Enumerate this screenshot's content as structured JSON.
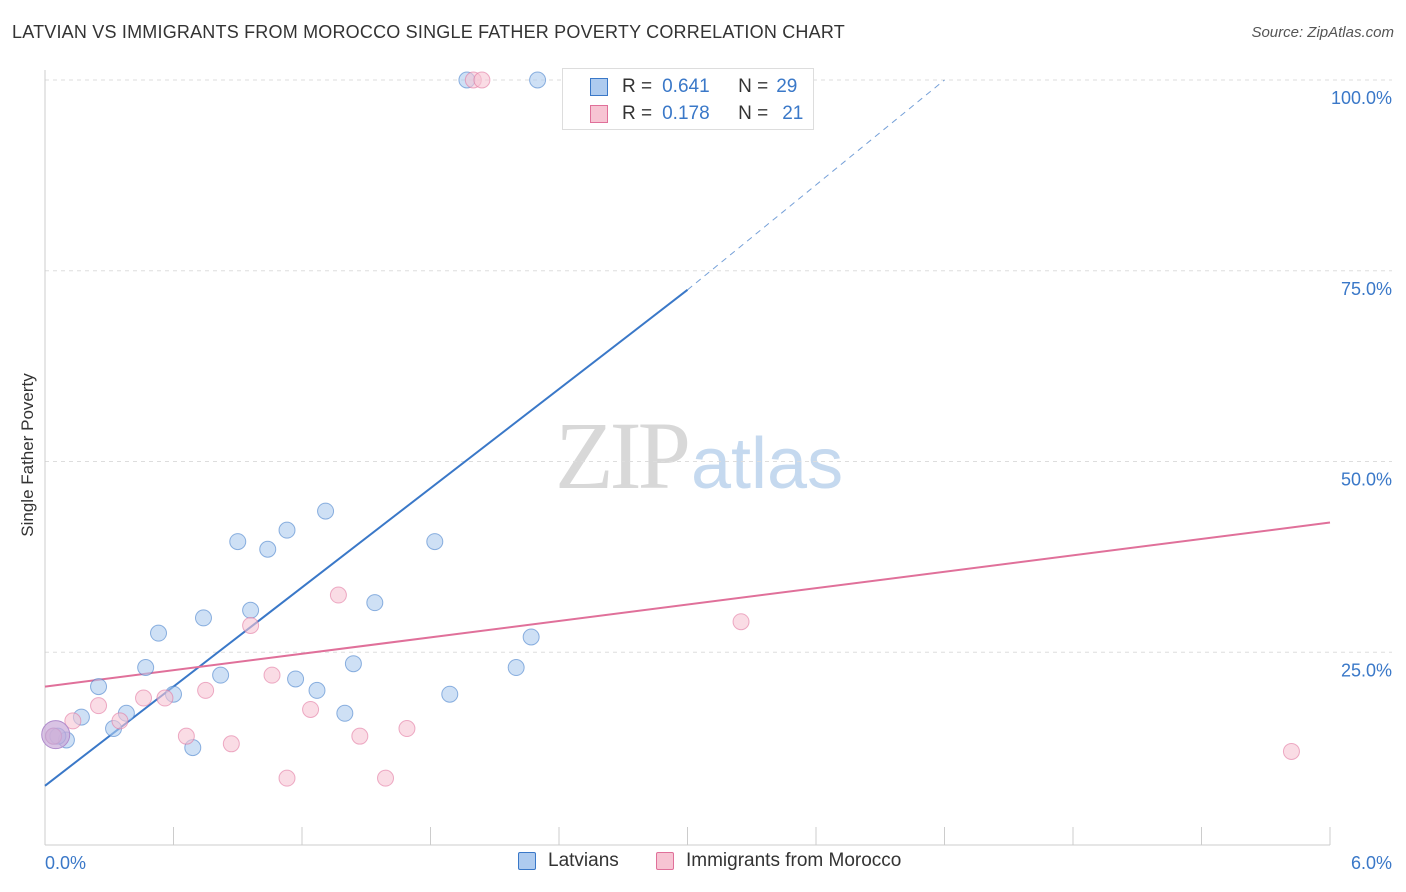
{
  "title": "LATVIAN VS IMMIGRANTS FROM MOROCCO SINGLE FATHER POVERTY CORRELATION CHART",
  "source": "Source: ZipAtlas.com",
  "watermark": {
    "zip": "ZIP",
    "atlas": "atlas"
  },
  "colors": {
    "latvians_fill": "#aecbef",
    "latvians_stroke": "#3a78c8",
    "morocco_fill": "#f7c4d3",
    "morocco_stroke": "#e0709a",
    "grid": "#dddddd",
    "tick_text": "#3a78c8"
  },
  "stats_legend": [
    {
      "r_label": "R =",
      "r_value": "0.641",
      "n_label": "N =",
      "n_value": "29"
    },
    {
      "r_label": "R =",
      "r_value": "0.178",
      "n_label": "N =",
      "n_value": "21"
    }
  ],
  "chart_data": {
    "type": "scatter",
    "title": "LATVIAN VS IMMIGRANTS FROM MOROCCO SINGLE FATHER POVERTY CORRELATION CHART",
    "xlabel": "",
    "ylabel": "Single Father Poverty",
    "xlim": [
      0,
      6
    ],
    "ylim": [
      0,
      102
    ],
    "x_tick_labels": [
      "0.0%",
      "6.0%"
    ],
    "y_ticks": [
      25,
      50,
      75,
      100
    ],
    "y_tick_labels": [
      "25.0%",
      "50.0%",
      "75.0%",
      "100.0%"
    ],
    "grid": "horizontal dashed",
    "legend": "bottom-center",
    "series": [
      {
        "name": "Latvians",
        "trend": {
          "x1": 0,
          "y1": 7.5,
          "x2": 3.0,
          "y2": 72.5,
          "dashed_to_x": 4.2,
          "dashed_to_y": 100
        },
        "points": [
          [
            0.04,
            14.0
          ],
          [
            0.1,
            13.5
          ],
          [
            0.17,
            16.5
          ],
          [
            0.25,
            20.5
          ],
          [
            0.32,
            15.0
          ],
          [
            0.38,
            17.0
          ],
          [
            0.47,
            23.0
          ],
          [
            0.53,
            27.5
          ],
          [
            0.6,
            19.5
          ],
          [
            0.69,
            12.5
          ],
          [
            0.74,
            29.5
          ],
          [
            0.82,
            22.0
          ],
          [
            0.9,
            39.5
          ],
          [
            0.96,
            30.5
          ],
          [
            1.04,
            38.5
          ],
          [
            1.13,
            41.0
          ],
          [
            1.17,
            21.5
          ],
          [
            1.27,
            20.0
          ],
          [
            1.31,
            43.5
          ],
          [
            1.4,
            17.0
          ],
          [
            1.44,
            23.5
          ],
          [
            1.54,
            31.5
          ],
          [
            1.82,
            39.5
          ],
          [
            1.89,
            19.5
          ],
          [
            2.2,
            23.0
          ],
          [
            2.27,
            27.0
          ],
          [
            1.97,
            100.0
          ],
          [
            2.3,
            100.0
          ],
          [
            0.06,
            14.0
          ]
        ]
      },
      {
        "name": "Immigrants from Morocco",
        "trend": {
          "x1": 0,
          "y1": 20.5,
          "x2": 6.0,
          "y2": 42.0
        },
        "points": [
          [
            0.04,
            14.0
          ],
          [
            0.13,
            16.0
          ],
          [
            0.25,
            18.0
          ],
          [
            0.35,
            16.0
          ],
          [
            0.46,
            19.0
          ],
          [
            0.56,
            19.0
          ],
          [
            0.66,
            14.0
          ],
          [
            0.75,
            20.0
          ],
          [
            0.87,
            13.0
          ],
          [
            0.96,
            28.5
          ],
          [
            1.06,
            22.0
          ],
          [
            1.13,
            8.5
          ],
          [
            1.24,
            17.5
          ],
          [
            1.37,
            32.5
          ],
          [
            1.47,
            14.0
          ],
          [
            1.59,
            8.5
          ],
          [
            1.69,
            15.0
          ],
          [
            2.0,
            100.0
          ],
          [
            2.04,
            100.0
          ],
          [
            3.25,
            29.0
          ],
          [
            5.82,
            12.0
          ]
        ]
      }
    ]
  }
}
